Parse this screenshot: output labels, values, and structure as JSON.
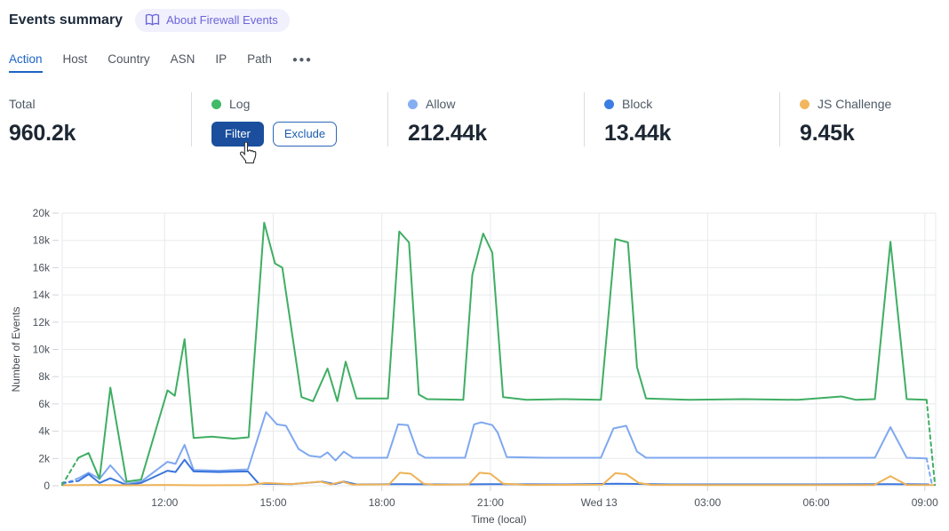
{
  "header": {
    "title": "Events summary",
    "about_badge": "About Firewall Events",
    "badge_color": "#6b66d8"
  },
  "tabs": {
    "items": [
      "Action",
      "Host",
      "Country",
      "ASN",
      "IP",
      "Path"
    ],
    "active": "Action",
    "more_label": "●●●"
  },
  "stats": [
    {
      "label": "Total",
      "value": "960.2k",
      "dot": null
    },
    {
      "label": "Log",
      "dot": "#41bb68",
      "hover_buttons": {
        "filter": "Filter",
        "exclude": "Exclude"
      }
    },
    {
      "label": "Allow",
      "value": "212.44k",
      "dot": "#85adf2"
    },
    {
      "label": "Block",
      "value": "13.44k",
      "dot": "#3b7de2"
    },
    {
      "label": "JS Challenge",
      "value": "9.45k",
      "dot": "#f2b75e"
    }
  ],
  "chart_data": {
    "type": "line",
    "xlabel": "Time (local)",
    "ylabel": "Number of Events",
    "y_unit": "thousands of events",
    "ylim_k": [
      0,
      20
    ],
    "grid": true,
    "x_domain_hours": [
      9.17,
      33.3
    ],
    "y_ticks": [
      {
        "v": 0,
        "label": "0"
      },
      {
        "v": 2,
        "label": "2k"
      },
      {
        "v": 4,
        "label": "4k"
      },
      {
        "v": 6,
        "label": "6k"
      },
      {
        "v": 8,
        "label": "8k"
      },
      {
        "v": 10,
        "label": "10k"
      },
      {
        "v": 12,
        "label": "12k"
      },
      {
        "v": 14,
        "label": "14k"
      },
      {
        "v": 16,
        "label": "16k"
      },
      {
        "v": 18,
        "label": "18k"
      },
      {
        "v": 20,
        "label": "20k"
      }
    ],
    "x_ticks": [
      {
        "t": 12,
        "label": "12:00"
      },
      {
        "t": 15,
        "label": "15:00"
      },
      {
        "t": 18,
        "label": "18:00"
      },
      {
        "t": 21,
        "label": "21:00"
      },
      {
        "t": 24,
        "label": "Wed 13"
      },
      {
        "t": 27,
        "label": "03:00"
      },
      {
        "t": 30,
        "label": "06:00"
      },
      {
        "t": 33,
        "label": "09:00"
      }
    ],
    "series": [
      {
        "name": "Allow",
        "color": "#7fa8f0",
        "dash_head_until": 9.62,
        "dash_tail_from": 33.05,
        "points": [
          [
            9.17,
            0.1
          ],
          [
            9.62,
            0.55
          ],
          [
            9.9,
            0.95
          ],
          [
            10.2,
            0.5
          ],
          [
            10.5,
            1.5
          ],
          [
            10.95,
            0.15
          ],
          [
            11.35,
            0.3
          ],
          [
            12.08,
            1.75
          ],
          [
            12.3,
            1.6
          ],
          [
            12.55,
            3.0
          ],
          [
            12.8,
            1.15
          ],
          [
            13.5,
            1.1
          ],
          [
            14.3,
            1.2
          ],
          [
            14.8,
            5.4
          ],
          [
            15.1,
            4.5
          ],
          [
            15.35,
            4.4
          ],
          [
            15.7,
            2.7
          ],
          [
            16.0,
            2.2
          ],
          [
            16.3,
            2.1
          ],
          [
            16.5,
            2.45
          ],
          [
            16.72,
            1.85
          ],
          [
            16.95,
            2.5
          ],
          [
            17.2,
            2.05
          ],
          [
            18.15,
            2.05
          ],
          [
            18.45,
            4.5
          ],
          [
            18.72,
            4.45
          ],
          [
            19.0,
            2.35
          ],
          [
            19.2,
            2.05
          ],
          [
            20.3,
            2.05
          ],
          [
            20.55,
            4.5
          ],
          [
            20.75,
            4.65
          ],
          [
            21.05,
            4.45
          ],
          [
            21.2,
            3.9
          ],
          [
            21.45,
            2.1
          ],
          [
            22.5,
            2.05
          ],
          [
            24.05,
            2.05
          ],
          [
            24.4,
            4.2
          ],
          [
            24.75,
            4.4
          ],
          [
            25.05,
            2.5
          ],
          [
            25.3,
            2.05
          ],
          [
            27,
            2.05
          ],
          [
            30,
            2.05
          ],
          [
            31.62,
            2.05
          ],
          [
            32.05,
            4.3
          ],
          [
            32.5,
            2.05
          ],
          [
            33.05,
            2.0
          ],
          [
            33.2,
            0.05
          ]
        ]
      },
      {
        "name": "Block",
        "color": "#3a75dc",
        "dash_head_until": 9.62,
        "dash_tail_from": null,
        "points": [
          [
            9.17,
            0.2
          ],
          [
            9.62,
            0.35
          ],
          [
            9.9,
            0.85
          ],
          [
            10.2,
            0.2
          ],
          [
            10.5,
            0.55
          ],
          [
            10.95,
            0.05
          ],
          [
            11.35,
            0.2
          ],
          [
            12.08,
            1.1
          ],
          [
            12.3,
            1.0
          ],
          [
            12.55,
            1.9
          ],
          [
            12.8,
            1.05
          ],
          [
            13.5,
            1.0
          ],
          [
            14.3,
            1.05
          ],
          [
            14.6,
            0.15
          ],
          [
            15.5,
            0.12
          ],
          [
            16.35,
            0.3
          ],
          [
            16.7,
            0.12
          ],
          [
            16.95,
            0.3
          ],
          [
            17.3,
            0.1
          ],
          [
            18.5,
            0.12
          ],
          [
            20.0,
            0.1
          ],
          [
            21.0,
            0.12
          ],
          [
            23.0,
            0.1
          ],
          [
            24.5,
            0.15
          ],
          [
            26.0,
            0.1
          ],
          [
            28.0,
            0.1
          ],
          [
            30.0,
            0.1
          ],
          [
            32.0,
            0.12
          ],
          [
            33.1,
            0.1
          ]
        ]
      },
      {
        "name": "JS Challenge",
        "color": "#eeb257",
        "dash_head_until": null,
        "dash_tail_from": null,
        "points": [
          [
            9.17,
            0.03
          ],
          [
            10,
            0.06
          ],
          [
            11,
            0.03
          ],
          [
            12,
            0.06
          ],
          [
            13,
            0.03
          ],
          [
            14.3,
            0.05
          ],
          [
            14.8,
            0.2
          ],
          [
            15.5,
            0.12
          ],
          [
            16.3,
            0.3
          ],
          [
            16.6,
            0.1
          ],
          [
            16.9,
            0.3
          ],
          [
            17.2,
            0.08
          ],
          [
            18.2,
            0.1
          ],
          [
            18.5,
            0.95
          ],
          [
            18.8,
            0.88
          ],
          [
            19.15,
            0.15
          ],
          [
            19.45,
            0.07
          ],
          [
            20.4,
            0.1
          ],
          [
            20.7,
            0.95
          ],
          [
            21.0,
            0.88
          ],
          [
            21.35,
            0.15
          ],
          [
            22,
            0.06
          ],
          [
            24.1,
            0.08
          ],
          [
            24.45,
            0.92
          ],
          [
            24.75,
            0.85
          ],
          [
            25.1,
            0.2
          ],
          [
            25.45,
            0.06
          ],
          [
            27,
            0.05
          ],
          [
            29,
            0.05
          ],
          [
            31.6,
            0.05
          ],
          [
            32.05,
            0.7
          ],
          [
            32.5,
            0.06
          ],
          [
            33.25,
            0.05
          ]
        ]
      },
      {
        "name": "Log",
        "color": "#3fae63",
        "dash_head_until": 9.62,
        "dash_tail_from": 33.05,
        "points": [
          [
            9.17,
            0.05
          ],
          [
            9.62,
            2.05
          ],
          [
            9.9,
            2.4
          ],
          [
            10.2,
            0.5
          ],
          [
            10.5,
            7.2
          ],
          [
            10.95,
            0.3
          ],
          [
            11.35,
            0.45
          ],
          [
            12.08,
            7.0
          ],
          [
            12.28,
            6.6
          ],
          [
            12.55,
            10.75
          ],
          [
            12.8,
            3.5
          ],
          [
            13.3,
            3.6
          ],
          [
            13.9,
            3.45
          ],
          [
            14.32,
            3.55
          ],
          [
            14.75,
            19.3
          ],
          [
            15.05,
            16.3
          ],
          [
            15.25,
            16.0
          ],
          [
            15.78,
            6.5
          ],
          [
            16.1,
            6.2
          ],
          [
            16.5,
            8.6
          ],
          [
            16.77,
            6.2
          ],
          [
            17.0,
            9.1
          ],
          [
            17.3,
            6.4
          ],
          [
            18.17,
            6.4
          ],
          [
            18.48,
            18.65
          ],
          [
            18.75,
            17.85
          ],
          [
            19.02,
            6.7
          ],
          [
            19.25,
            6.35
          ],
          [
            20.25,
            6.3
          ],
          [
            20.5,
            15.5
          ],
          [
            20.8,
            18.5
          ],
          [
            21.05,
            17.1
          ],
          [
            21.35,
            6.5
          ],
          [
            22.0,
            6.3
          ],
          [
            23.0,
            6.35
          ],
          [
            24.05,
            6.3
          ],
          [
            24.45,
            18.1
          ],
          [
            24.8,
            17.85
          ],
          [
            25.05,
            8.7
          ],
          [
            25.3,
            6.4
          ],
          [
            26.5,
            6.3
          ],
          [
            28.0,
            6.35
          ],
          [
            29.5,
            6.3
          ],
          [
            30.7,
            6.55
          ],
          [
            31.1,
            6.3
          ],
          [
            31.62,
            6.35
          ],
          [
            32.05,
            17.9
          ],
          [
            32.5,
            6.35
          ],
          [
            33.05,
            6.3
          ],
          [
            33.28,
            0.05
          ]
        ]
      }
    ]
  }
}
